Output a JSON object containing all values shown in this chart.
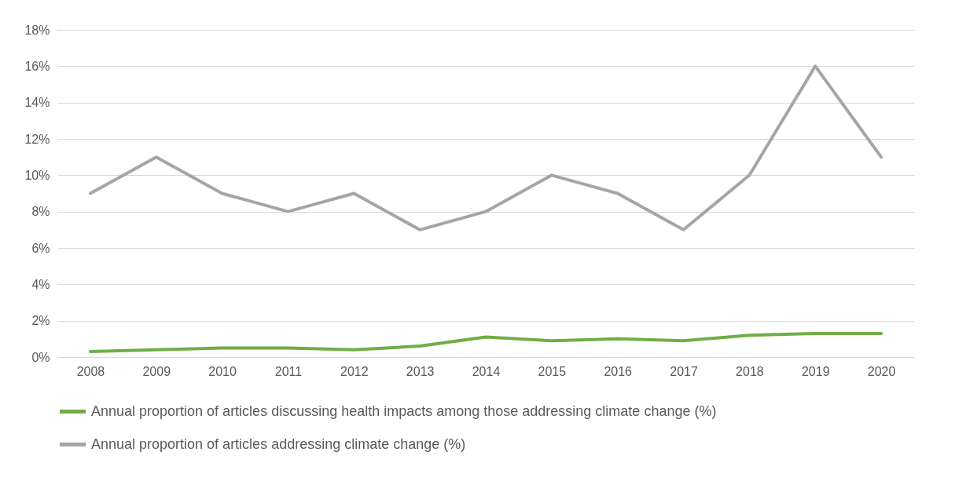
{
  "chart_data": {
    "type": "line",
    "categories": [
      "2008",
      "2009",
      "2010",
      "2011",
      "2012",
      "2013",
      "2014",
      "2015",
      "2016",
      "2017",
      "2018",
      "2019",
      "2020"
    ],
    "series": [
      {
        "name": "Annual proportion of articles discussing health impacts among those addressing climate change  (%)",
        "color": "#70ad47",
        "values": [
          0.3,
          0.4,
          0.5,
          0.5,
          0.4,
          0.6,
          1.1,
          0.9,
          1.0,
          0.9,
          1.2,
          1.3,
          1.3
        ]
      },
      {
        "name": "Annual proportion of articles addressing climate change (%)",
        "color": "#a5a5a5",
        "values": [
          9,
          11,
          9,
          8,
          9,
          7,
          8,
          10,
          9,
          7,
          10,
          16,
          11
        ]
      }
    ],
    "ylim": [
      0,
      18
    ],
    "yticks": [
      {
        "value": 0,
        "label": "0%"
      },
      {
        "value": 2,
        "label": "2%"
      },
      {
        "value": 4,
        "label": "4%"
      },
      {
        "value": 6,
        "label": "6%"
      },
      {
        "value": 8,
        "label": "8%"
      },
      {
        "value": 10,
        "label": "10%"
      },
      {
        "value": 12,
        "label": "12%"
      },
      {
        "value": 14,
        "label": "14%"
      },
      {
        "value": 16,
        "label": "16%"
      },
      {
        "value": 18,
        "label": "18%"
      }
    ],
    "grid": "y",
    "legend": "bottom",
    "marker": "none",
    "line_style": "solid"
  }
}
